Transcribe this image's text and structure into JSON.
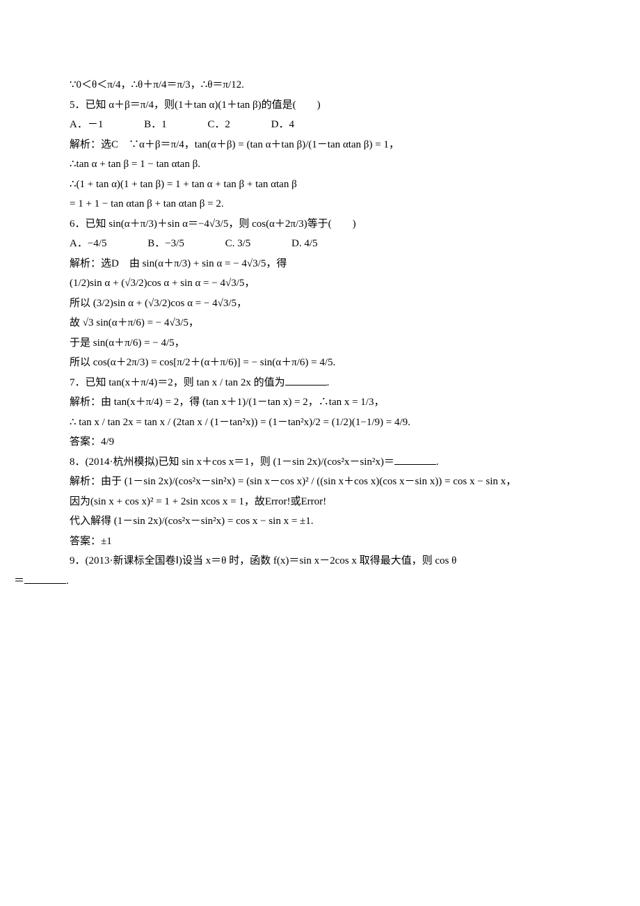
{
  "colors": {
    "text": "#000000",
    "background": "#ffffff"
  },
  "typography": {
    "body_font": "Times New Roman, SimSun, serif",
    "body_size_pt": 11,
    "line_height": 1.7
  },
  "l1": "∵0＜θ＜π/4，∴θ＋π/4＝π/3，∴θ＝π/12.",
  "q5": {
    "stem": "5．已知 α＋β＝π/4，则(1＋tan α)(1＋tan β)的值是(　　)",
    "optA": "A．－1",
    "optB": "B．1",
    "optC": "C．2",
    "optD": "D．4",
    "sol1": "解析：选C　∵α＋β＝π/4，tan(α＋β) = (tan α＋tan β)/(1－tan αtan β) = 1，",
    "sol2": "∴tan α + tan β = 1 − tan αtan β.",
    "sol3": "∴(1 + tan α)(1 + tan β) = 1 + tan α + tan β + tan αtan β",
    "sol4": "= 1 + 1 − tan αtan β + tan αtan β = 2."
  },
  "q6": {
    "stem": "6．已知 sin(α＋π/3)＋sin α＝−4√3/5，则 cos(α＋2π/3)等于(　　)",
    "optA": "A．−4/5",
    "optB": "B．−3/5",
    "optC": "C. 3/5",
    "optD": "D. 4/5",
    "sol1": "解析：选D　由 sin(α＋π/3) + sin α = − 4√3/5，得",
    "sol2": "(1/2)sin α + (√3/2)cos α + sin α = − 4√3/5，",
    "sol3": "所以 (3/2)sin α + (√3/2)cos α = − 4√3/5，",
    "sol4": "故 √3 sin(α＋π/6) = − 4√3/5，",
    "sol5": "于是 sin(α＋π/6) = − 4/5，",
    "sol6": "所以 cos(α＋2π/3) = cos[π/2＋(α＋π/6)] = − sin(α＋π/6) = 4/5."
  },
  "q7": {
    "stem": "7．已知 tan(x＋π/4)＝2，则 tan x / tan 2x 的值为",
    "stemEnd": ".",
    "sol1": "解析：由 tan(x＋π/4) = 2，得 (tan x＋1)/(1－tan x) = 2，∴tan x = 1/3，",
    "sol2": "∴ tan x / tan 2x = tan x / (2tan x / (1－tan²x)) = (1－tan²x)/2 = (1/2)(1−1/9) = 4/9.",
    "ans": "答案：4/9"
  },
  "q8": {
    "stem": "8．(2014·杭州模拟)已知 sin x＋cos x＝1，则 (1－sin 2x)/(cos²x－sin²x)＝",
    "stemEnd": ".",
    "sol1": "解析：由于 (1－sin 2x)/(cos²x－sin²x) = (sin x－cos x)² / ((sin x＋cos x)(cos x－sin x)) = cos x − sin x，",
    "sol2": "因为(sin x + cos x)² = 1 + 2sin xcos x = 1，故Error!或Error!",
    "sol3": "代入解得 (1－sin 2x)/(cos²x－sin²x) = cos x − sin x = ±1.",
    "ans": "答案：±1"
  },
  "q9": {
    "stemA": "9．(2013·新课标全国卷Ⅰ)设当 x＝θ 时，函数 f(x)＝sin x－2cos x 取得最大值，则 cos θ",
    "stemB": "＝",
    "stemEnd": "."
  }
}
